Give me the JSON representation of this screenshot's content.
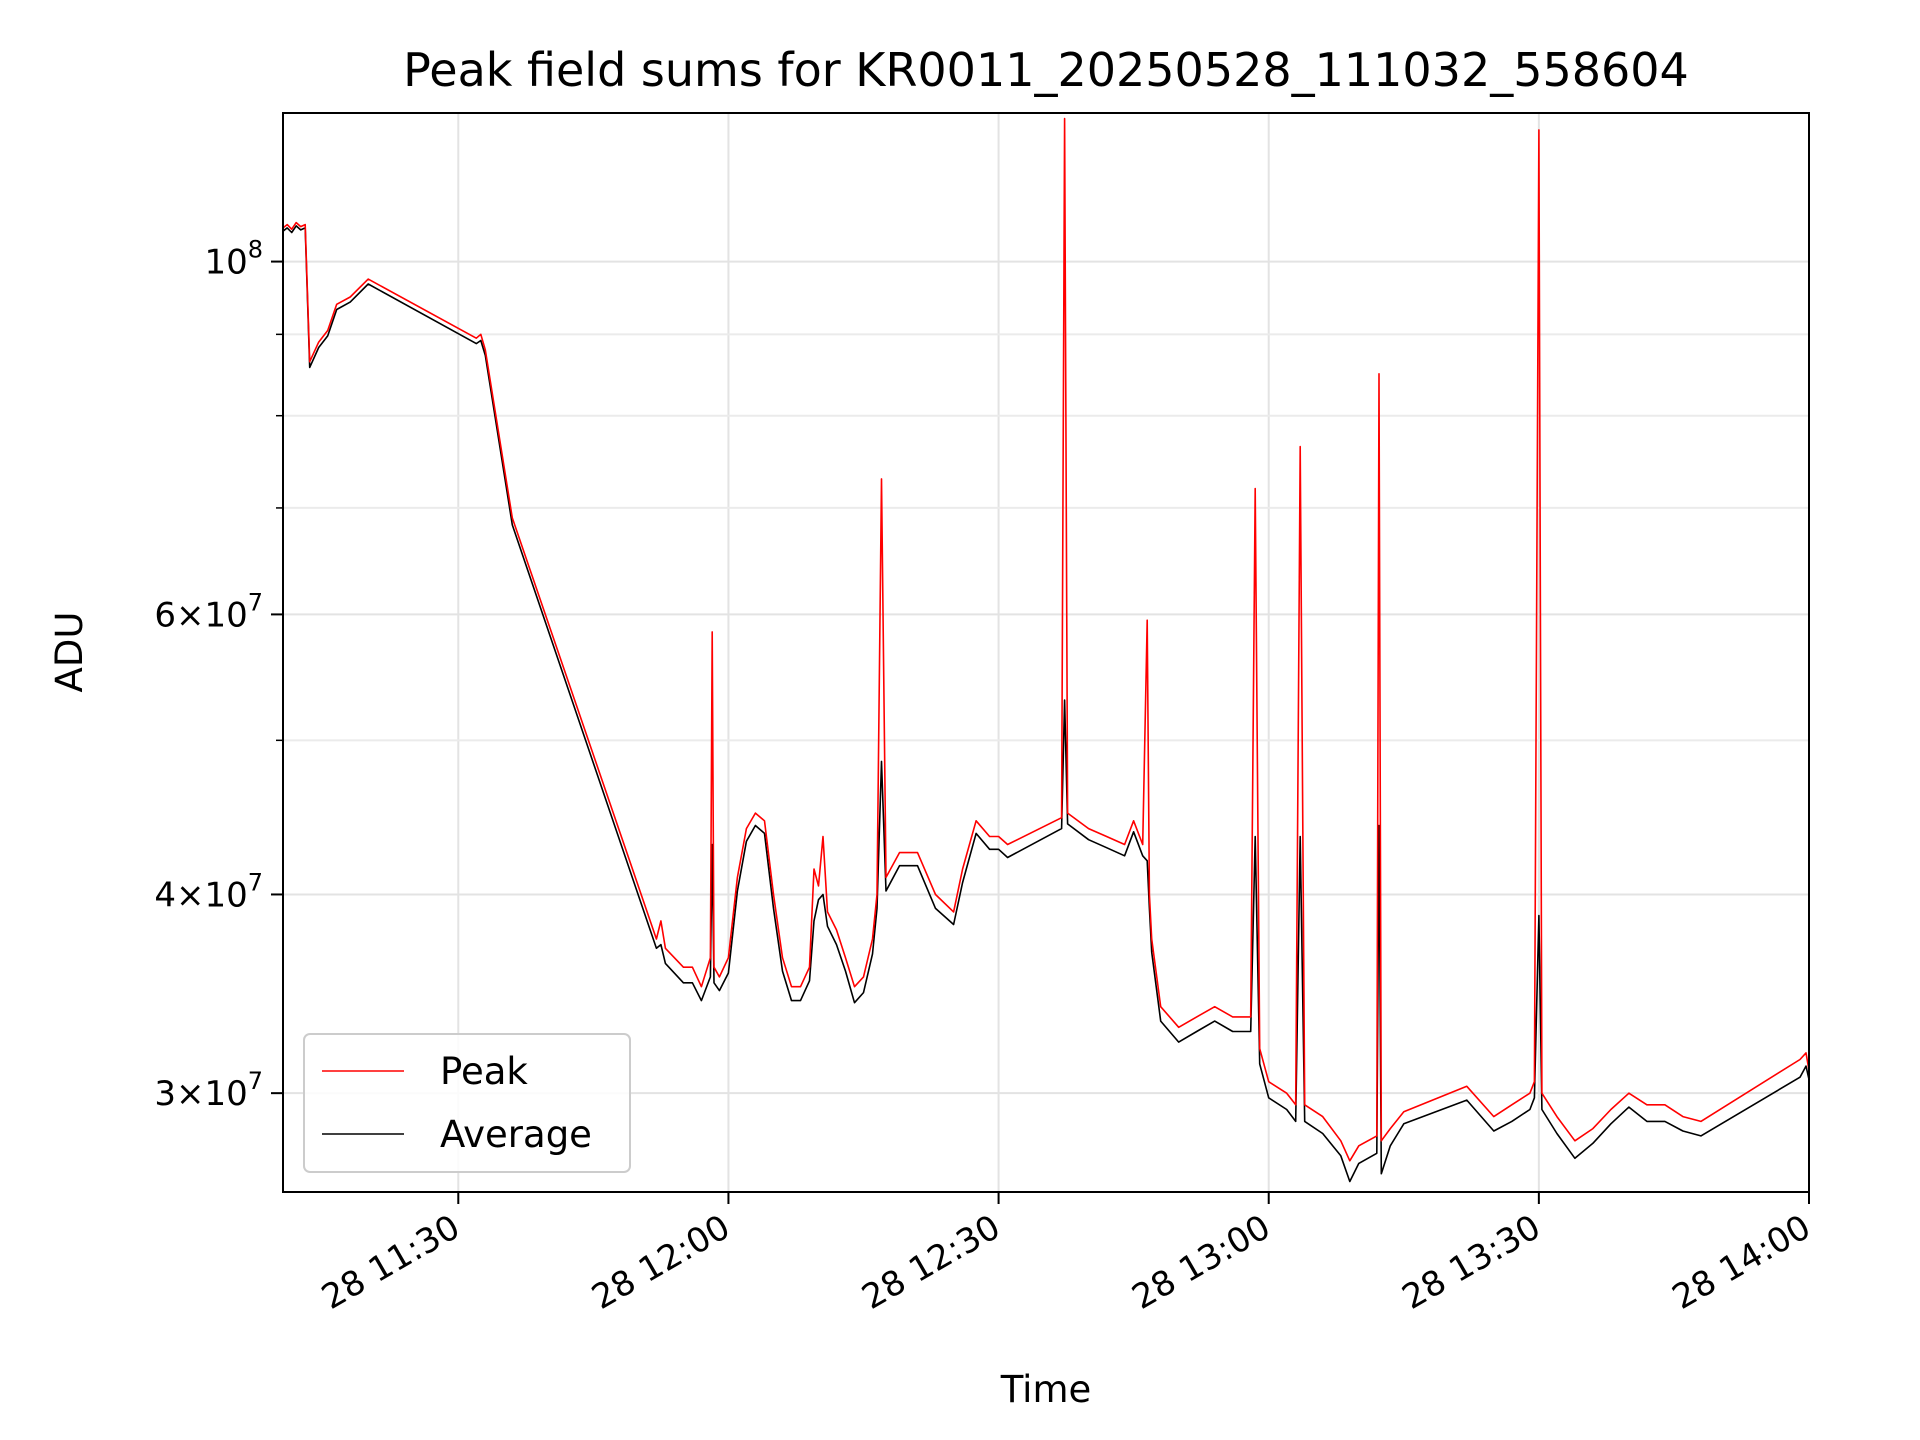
{
  "chart_data": {
    "type": "line",
    "title": "Peak field sums for KR0011_20250528_111032_558604",
    "xlabel": "Time",
    "ylabel": "ADU",
    "yscale": "log",
    "grid": true,
    "legend_position": "lower-left",
    "xlim": [
      "2025-05-28 11:10:32",
      "2025-05-28 14:00"
    ],
    "ylim": [
      26000000,
      124000000
    ],
    "x_ticks": [
      {
        "value": "2025-05-28 11:30",
        "label": "28 11:30"
      },
      {
        "value": "2025-05-28 12:00",
        "label": "28 12:00"
      },
      {
        "value": "2025-05-28 12:30",
        "label": "28 12:30"
      },
      {
        "value": "2025-05-28 13:00",
        "label": "28 13:00"
      },
      {
        "value": "2025-05-28 13:30",
        "label": "28 13:30"
      },
      {
        "value": "2025-05-28 14:00",
        "label": "28 14:00"
      }
    ],
    "y_major_ticks": [
      {
        "value": 30000000,
        "mant": "3",
        "exp": "7"
      },
      {
        "value": 40000000,
        "mant": "4",
        "exp": "7"
      },
      {
        "value": 60000000,
        "mant": "6",
        "exp": "7"
      },
      {
        "value": 100000000,
        "mant": "",
        "exp": "8"
      }
    ],
    "y_minor_ticks": [
      50000000,
      70000000,
      80000000,
      90000000
    ],
    "series": [
      {
        "name": "Peak",
        "color": "#ff0000",
        "points": [
          [
            "2025-05-28 11:10:32",
            105000000
          ],
          [
            "2025-05-28 11:11:00",
            105500000
          ],
          [
            "2025-05-28 11:11:30",
            104800000
          ],
          [
            "2025-05-28 11:12:00",
            105800000
          ],
          [
            "2025-05-28 11:12:30",
            105200000
          ],
          [
            "2025-05-28 11:13:00",
            105500000
          ],
          [
            "2025-05-28 11:13:30",
            86500000
          ],
          [
            "2025-05-28 11:14:30",
            89000000
          ],
          [
            "2025-05-28 11:15:30",
            90500000
          ],
          [
            "2025-05-28 11:16:30",
            94000000
          ],
          [
            "2025-05-28 11:18:00",
            95000000
          ],
          [
            "2025-05-28 11:20:00",
            97500000
          ],
          [
            "2025-05-28 11:32:00",
            89500000
          ],
          [
            "2025-05-28 11:32:30",
            90000000
          ],
          [
            "2025-05-28 11:33:00",
            88000000
          ],
          [
            "2025-05-28 11:36:00",
            69000000
          ],
          [
            "2025-05-28 11:52:00",
            37500000
          ],
          [
            "2025-05-28 11:52:30",
            38500000
          ],
          [
            "2025-05-28 11:53:00",
            37000000
          ],
          [
            "2025-05-28 11:55:00",
            36000000
          ],
          [
            "2025-05-28 11:56:00",
            36000000
          ],
          [
            "2025-05-28 11:57:00",
            35000000
          ],
          [
            "2025-05-28 11:58:00",
            36500000
          ],
          [
            "2025-05-28 11:58:12",
            58500000
          ],
          [
            "2025-05-28 11:58:24",
            36000000
          ],
          [
            "2025-05-28 11:59:00",
            35500000
          ],
          [
            "2025-05-28 12:00:00",
            36500000
          ],
          [
            "2025-05-28 12:01:00",
            41000000
          ],
          [
            "2025-05-28 12:02:00",
            44000000
          ],
          [
            "2025-05-28 12:03:00",
            45000000
          ],
          [
            "2025-05-28 12:04:00",
            44500000
          ],
          [
            "2025-05-28 12:05:00",
            40000000
          ],
          [
            "2025-05-28 12:06:00",
            36500000
          ],
          [
            "2025-05-28 12:07:00",
            35000000
          ],
          [
            "2025-05-28 12:08:00",
            35000000
          ],
          [
            "2025-05-28 12:09:00",
            36000000
          ],
          [
            "2025-05-28 12:09:30",
            41500000
          ],
          [
            "2025-05-28 12:10:00",
            40500000
          ],
          [
            "2025-05-28 12:10:30",
            43500000
          ],
          [
            "2025-05-28 12:11:00",
            39000000
          ],
          [
            "2025-05-28 12:12:00",
            38000000
          ],
          [
            "2025-05-28 12:13:00",
            36500000
          ],
          [
            "2025-05-28 12:14:00",
            35000000
          ],
          [
            "2025-05-28 12:15:00",
            35500000
          ],
          [
            "2025-05-28 12:16:00",
            37500000
          ],
          [
            "2025-05-28 12:16:30",
            40000000
          ],
          [
            "2025-05-28 12:17:00",
            73000000
          ],
          [
            "2025-05-28 12:17:30",
            41000000
          ],
          [
            "2025-05-28 12:19:00",
            42500000
          ],
          [
            "2025-05-28 12:21:00",
            42500000
          ],
          [
            "2025-05-28 12:23:00",
            40000000
          ],
          [
            "2025-05-28 12:25:00",
            39000000
          ],
          [
            "2025-05-28 12:26:00",
            41500000
          ],
          [
            "2025-05-28 12:27:30",
            44500000
          ],
          [
            "2025-05-28 12:29:00",
            43500000
          ],
          [
            "2025-05-28 12:30:00",
            43500000
          ],
          [
            "2025-05-28 12:31:00",
            43000000
          ],
          [
            "2025-05-28 12:37:00",
            44700000
          ],
          [
            "2025-05-28 12:37:20",
            123000000
          ],
          [
            "2025-05-28 12:37:40",
            45000000
          ],
          [
            "2025-05-28 12:40:00",
            44000000
          ],
          [
            "2025-05-28 12:42:00",
            43500000
          ],
          [
            "2025-05-28 12:44:00",
            43000000
          ],
          [
            "2025-05-28 12:45:00",
            44500000
          ],
          [
            "2025-05-28 12:46:00",
            43000000
          ],
          [
            "2025-05-28 12:46:30",
            59500000
          ],
          [
            "2025-05-28 12:46:45",
            40000000
          ],
          [
            "2025-05-28 12:47:00",
            37500000
          ],
          [
            "2025-05-28 12:48:00",
            34000000
          ],
          [
            "2025-05-28 12:50:00",
            33000000
          ],
          [
            "2025-05-28 12:52:00",
            33500000
          ],
          [
            "2025-05-28 12:54:00",
            34000000
          ],
          [
            "2025-05-28 12:56:00",
            33500000
          ],
          [
            "2025-05-28 12:58:00",
            33500000
          ],
          [
            "2025-05-28 12:58:30",
            72000000
          ],
          [
            "2025-05-28 12:59:00",
            32000000
          ],
          [
            "2025-05-28 13:00:00",
            30500000
          ],
          [
            "2025-05-28 13:02:00",
            30000000
          ],
          [
            "2025-05-28 13:03:00",
            29500000
          ],
          [
            "2025-05-28 13:03:30",
            76500000
          ],
          [
            "2025-05-28 13:04:00",
            29500000
          ],
          [
            "2025-05-28 13:06:00",
            29000000
          ],
          [
            "2025-05-28 13:08:00",
            28000000
          ],
          [
            "2025-05-28 13:09:00",
            27200000
          ],
          [
            "2025-05-28 13:10:00",
            27800000
          ],
          [
            "2025-05-28 13:12:00",
            28200000
          ],
          [
            "2025-05-28 13:12:15",
            85000000
          ],
          [
            "2025-05-28 13:12:30",
            28000000
          ],
          [
            "2025-05-28 13:13:30",
            28500000
          ],
          [
            "2025-05-28 13:15:00",
            29200000
          ],
          [
            "2025-05-28 13:22:00",
            30300000
          ],
          [
            "2025-05-28 13:25:00",
            29000000
          ],
          [
            "2025-05-28 13:27:00",
            29500000
          ],
          [
            "2025-05-28 13:29:00",
            30000000
          ],
          [
            "2025-05-28 13:29:30",
            30500000
          ],
          [
            "2025-05-28 13:30:00",
            121000000
          ],
          [
            "2025-05-28 13:30:20",
            30000000
          ],
          [
            "2025-05-28 13:32:00",
            29000000
          ],
          [
            "2025-05-28 13:34:00",
            28000000
          ],
          [
            "2025-05-28 13:36:00",
            28500000
          ],
          [
            "2025-05-28 13:38:00",
            29300000
          ],
          [
            "2025-05-28 13:40:00",
            30000000
          ],
          [
            "2025-05-28 13:42:00",
            29500000
          ],
          [
            "2025-05-28 13:44:00",
            29500000
          ],
          [
            "2025-05-28 13:46:00",
            29000000
          ],
          [
            "2025-05-28 13:48:00",
            28800000
          ],
          [
            "2025-05-28 13:59:00",
            31500000
          ],
          [
            "2025-05-28 13:59:40",
            31800000
          ],
          [
            "2025-05-28 14:00:00",
            31000000
          ]
        ]
      },
      {
        "name": "Average",
        "color": "#000000",
        "points": [
          [
            "2025-05-28 11:10:32",
            104500000
          ],
          [
            "2025-05-28 11:11:00",
            105000000
          ],
          [
            "2025-05-28 11:11:30",
            104300000
          ],
          [
            "2025-05-28 11:12:00",
            105300000
          ],
          [
            "2025-05-28 11:12:30",
            104700000
          ],
          [
            "2025-05-28 11:13:00",
            105000000
          ],
          [
            "2025-05-28 11:13:30",
            85800000
          ],
          [
            "2025-05-28 11:14:30",
            88300000
          ],
          [
            "2025-05-28 11:15:30",
            89800000
          ],
          [
            "2025-05-28 11:16:30",
            93300000
          ],
          [
            "2025-05-28 11:18:00",
            94300000
          ],
          [
            "2025-05-28 11:20:00",
            96800000
          ],
          [
            "2025-05-28 11:32:00",
            88800000
          ],
          [
            "2025-05-28 11:32:30",
            89200000
          ],
          [
            "2025-05-28 11:33:00",
            87300000
          ],
          [
            "2025-05-28 11:36:00",
            68300000
          ],
          [
            "2025-05-28 11:52:00",
            37000000
          ],
          [
            "2025-05-28 11:52:30",
            37200000
          ],
          [
            "2025-05-28 11:53:00",
            36200000
          ],
          [
            "2025-05-28 11:55:00",
            35200000
          ],
          [
            "2025-05-28 11:56:00",
            35200000
          ],
          [
            "2025-05-28 11:57:00",
            34300000
          ],
          [
            "2025-05-28 11:58:00",
            35500000
          ],
          [
            "2025-05-28 11:58:12",
            43000000
          ],
          [
            "2025-05-28 11:58:24",
            35200000
          ],
          [
            "2025-05-28 11:59:00",
            34800000
          ],
          [
            "2025-05-28 12:00:00",
            35700000
          ],
          [
            "2025-05-28 12:01:00",
            40200000
          ],
          [
            "2025-05-28 12:02:00",
            43200000
          ],
          [
            "2025-05-28 12:03:00",
            44200000
          ],
          [
            "2025-05-28 12:04:00",
            43700000
          ],
          [
            "2025-05-28 12:05:00",
            39200000
          ],
          [
            "2025-05-28 12:06:00",
            35800000
          ],
          [
            "2025-05-28 12:07:00",
            34300000
          ],
          [
            "2025-05-28 12:08:00",
            34300000
          ],
          [
            "2025-05-28 12:09:00",
            35300000
          ],
          [
            "2025-05-28 12:09:30",
            38500000
          ],
          [
            "2025-05-28 12:10:00",
            39700000
          ],
          [
            "2025-05-28 12:10:30",
            40000000
          ],
          [
            "2025-05-28 12:11:00",
            38200000
          ],
          [
            "2025-05-28 12:12:00",
            37200000
          ],
          [
            "2025-05-28 12:13:00",
            35800000
          ],
          [
            "2025-05-28 12:14:00",
            34200000
          ],
          [
            "2025-05-28 12:15:00",
            34700000
          ],
          [
            "2025-05-28 12:16:00",
            36700000
          ],
          [
            "2025-05-28 12:16:30",
            39200000
          ],
          [
            "2025-05-28 12:17:00",
            48500000
          ],
          [
            "2025-05-28 12:17:30",
            40200000
          ],
          [
            "2025-05-28 12:19:00",
            41700000
          ],
          [
            "2025-05-28 12:21:00",
            41700000
          ],
          [
            "2025-05-28 12:23:00",
            39200000
          ],
          [
            "2025-05-28 12:25:00",
            38300000
          ],
          [
            "2025-05-28 12:26:00",
            40700000
          ],
          [
            "2025-05-28 12:27:30",
            43700000
          ],
          [
            "2025-05-28 12:29:00",
            42700000
          ],
          [
            "2025-05-28 12:30:00",
            42700000
          ],
          [
            "2025-05-28 12:31:00",
            42200000
          ],
          [
            "2025-05-28 12:37:00",
            44000000
          ],
          [
            "2025-05-28 12:37:20",
            53000000
          ],
          [
            "2025-05-28 12:37:40",
            44300000
          ],
          [
            "2025-05-28 12:40:00",
            43300000
          ],
          [
            "2025-05-28 12:42:00",
            42800000
          ],
          [
            "2025-05-28 12:44:00",
            42300000
          ],
          [
            "2025-05-28 12:45:00",
            43800000
          ],
          [
            "2025-05-28 12:46:00",
            42300000
          ],
          [
            "2025-05-28 12:46:30",
            42000000
          ],
          [
            "2025-05-28 12:46:45",
            39200000
          ],
          [
            "2025-05-28 12:47:00",
            36800000
          ],
          [
            "2025-05-28 12:48:00",
            33300000
          ],
          [
            "2025-05-28 12:50:00",
            32300000
          ],
          [
            "2025-05-28 12:52:00",
            32800000
          ],
          [
            "2025-05-28 12:54:00",
            33300000
          ],
          [
            "2025-05-28 12:56:00",
            32800000
          ],
          [
            "2025-05-28 12:58:00",
            32800000
          ],
          [
            "2025-05-28 12:58:30",
            43500000
          ],
          [
            "2025-05-28 12:59:00",
            31300000
          ],
          [
            "2025-05-28 13:00:00",
            29800000
          ],
          [
            "2025-05-28 13:02:00",
            29300000
          ],
          [
            "2025-05-28 13:03:00",
            28800000
          ],
          [
            "2025-05-28 13:03:30",
            43500000
          ],
          [
            "2025-05-28 13:04:00",
            28800000
          ],
          [
            "2025-05-28 13:06:00",
            28300000
          ],
          [
            "2025-05-28 13:08:00",
            27400000
          ],
          [
            "2025-05-28 13:09:00",
            26400000
          ],
          [
            "2025-05-28 13:10:00",
            27100000
          ],
          [
            "2025-05-28 13:12:00",
            27500000
          ],
          [
            "2025-05-28 13:12:15",
            44200000
          ],
          [
            "2025-05-28 13:12:30",
            26700000
          ],
          [
            "2025-05-28 13:13:30",
            27800000
          ],
          [
            "2025-05-28 13:15:00",
            28700000
          ],
          [
            "2025-05-28 13:22:00",
            29700000
          ],
          [
            "2025-05-28 13:25:00",
            28400000
          ],
          [
            "2025-05-28 13:27:00",
            28800000
          ],
          [
            "2025-05-28 13:29:00",
            29300000
          ],
          [
            "2025-05-28 13:29:30",
            29800000
          ],
          [
            "2025-05-28 13:30:00",
            38800000
          ],
          [
            "2025-05-28 13:30:20",
            29300000
          ],
          [
            "2025-05-28 13:32:00",
            28300000
          ],
          [
            "2025-05-28 13:34:00",
            27300000
          ],
          [
            "2025-05-28 13:36:00",
            27900000
          ],
          [
            "2025-05-28 13:38:00",
            28700000
          ],
          [
            "2025-05-28 13:40:00",
            29400000
          ],
          [
            "2025-05-28 13:42:00",
            28800000
          ],
          [
            "2025-05-28 13:44:00",
            28800000
          ],
          [
            "2025-05-28 13:46:00",
            28400000
          ],
          [
            "2025-05-28 13:48:00",
            28200000
          ],
          [
            "2025-05-28 13:59:00",
            30700000
          ],
          [
            "2025-05-28 13:59:40",
            31200000
          ],
          [
            "2025-05-28 14:00:00",
            30600000
          ]
        ]
      }
    ]
  }
}
